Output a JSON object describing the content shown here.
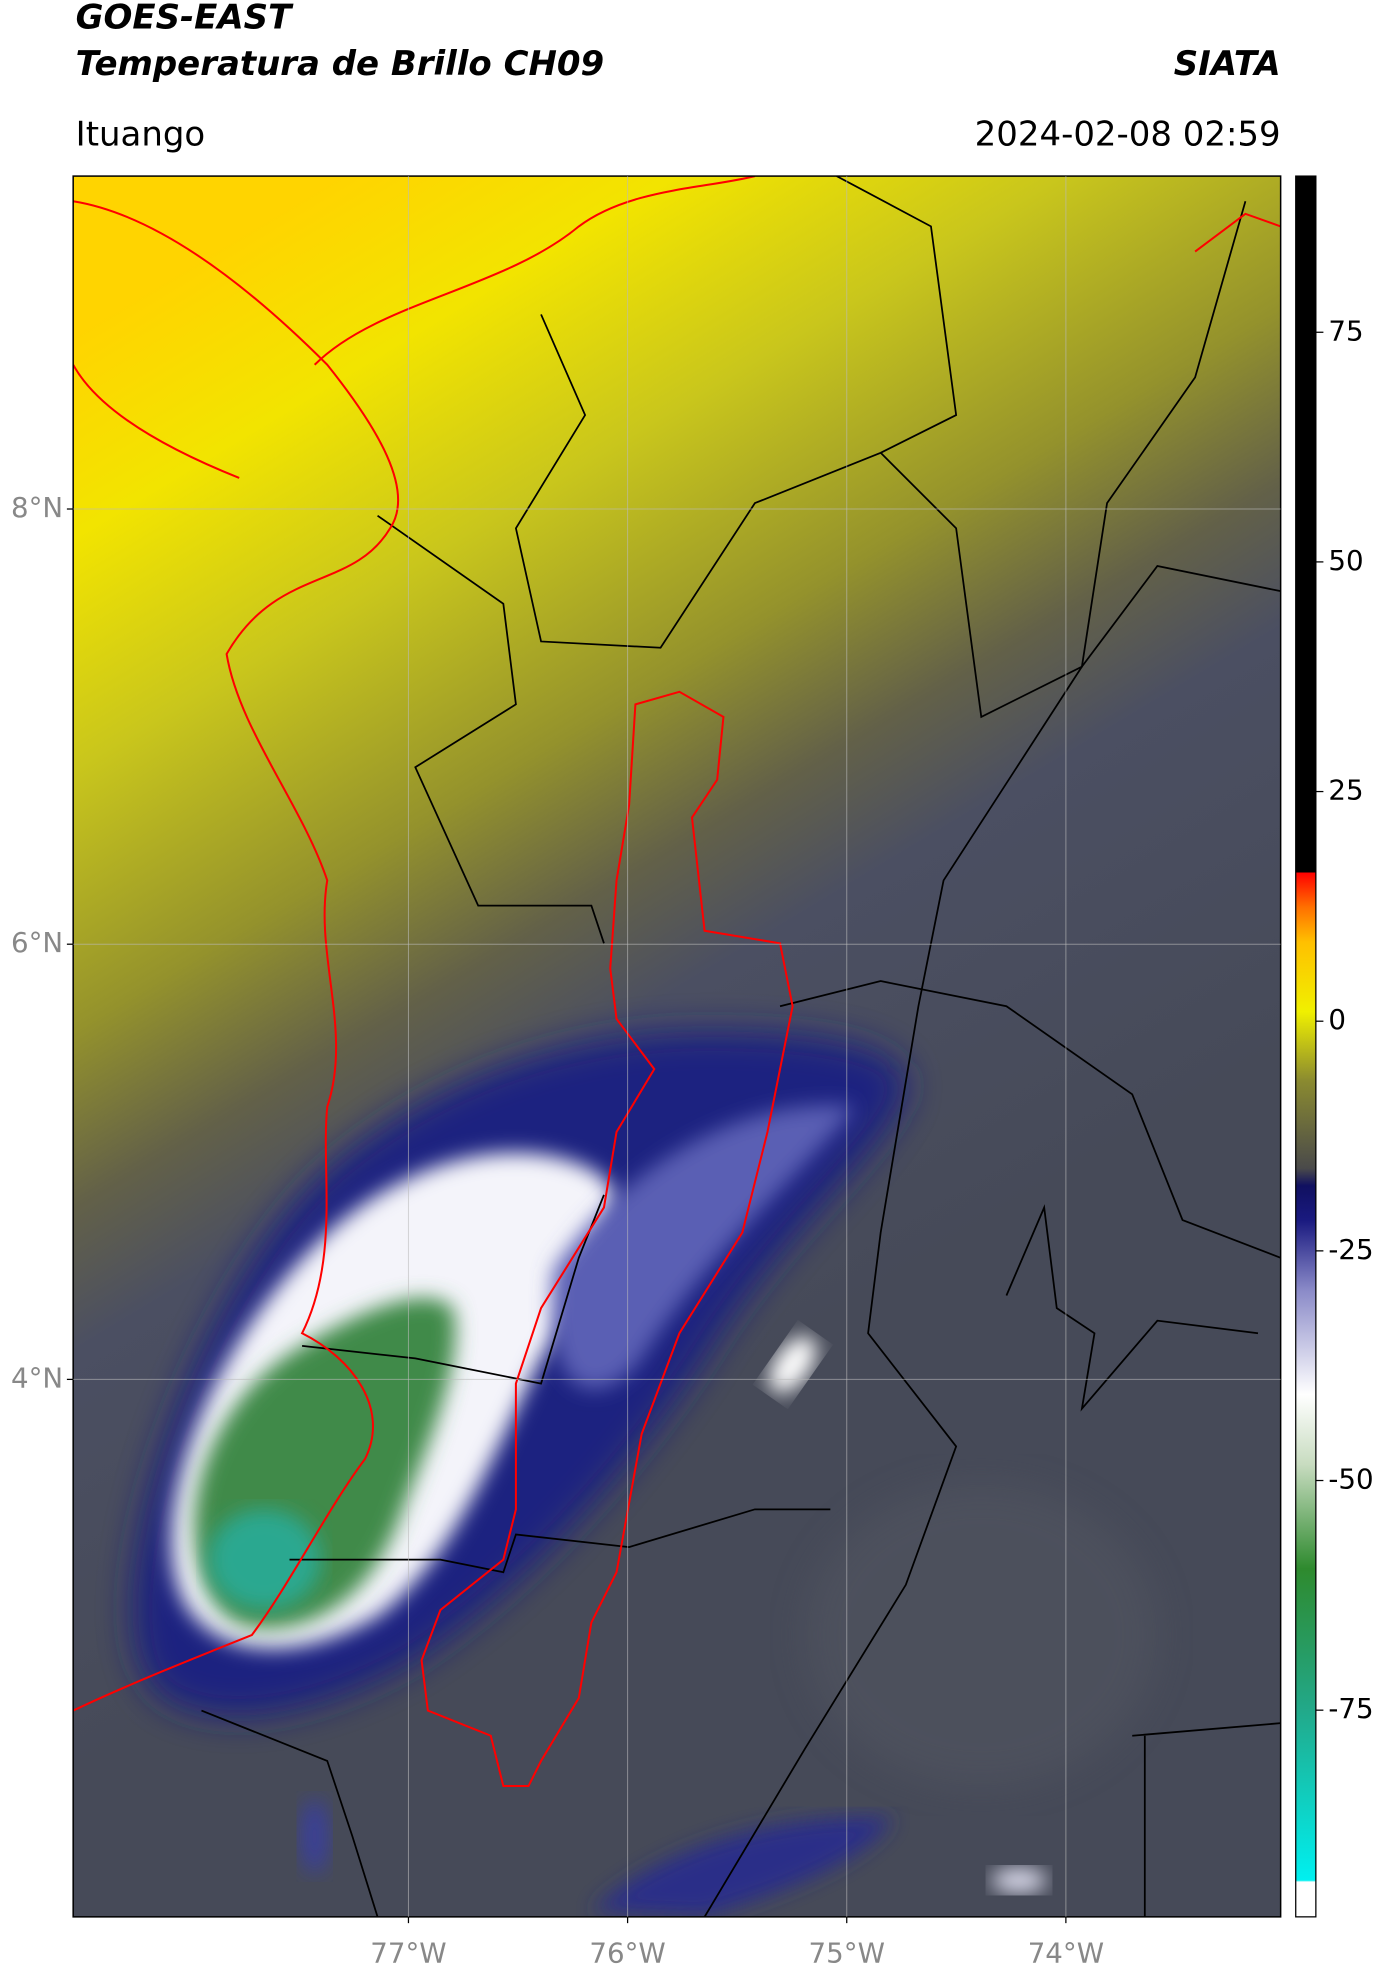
{
  "header": {
    "title": "GOES-EAST",
    "subtitle": "Temperatura de Brillo CH09",
    "source": "SIATA",
    "location": "Ituango",
    "datetime": "2024-02-08 02:59"
  },
  "map": {
    "latlim": [
      1.53,
      9.53
    ],
    "lonlim": [
      -78.53,
      -73.02
    ],
    "grid": true,
    "lat_ticks": [
      {
        "value": 8,
        "label": "8°N"
      },
      {
        "value": 6,
        "label": "6°N"
      },
      {
        "value": 4,
        "label": "4°N"
      }
    ],
    "lon_ticks": [
      {
        "value": -77,
        "label": "77°W"
      },
      {
        "value": -76,
        "label": "76°W"
      },
      {
        "value": -75,
        "label": "75°W"
      },
      {
        "value": -74,
        "label": "74°W"
      }
    ]
  },
  "colorbar": {
    "range": [
      -97.5,
      92
    ],
    "ticks": [
      75,
      50,
      25,
      0,
      -25,
      -50,
      -75
    ]
  }
}
